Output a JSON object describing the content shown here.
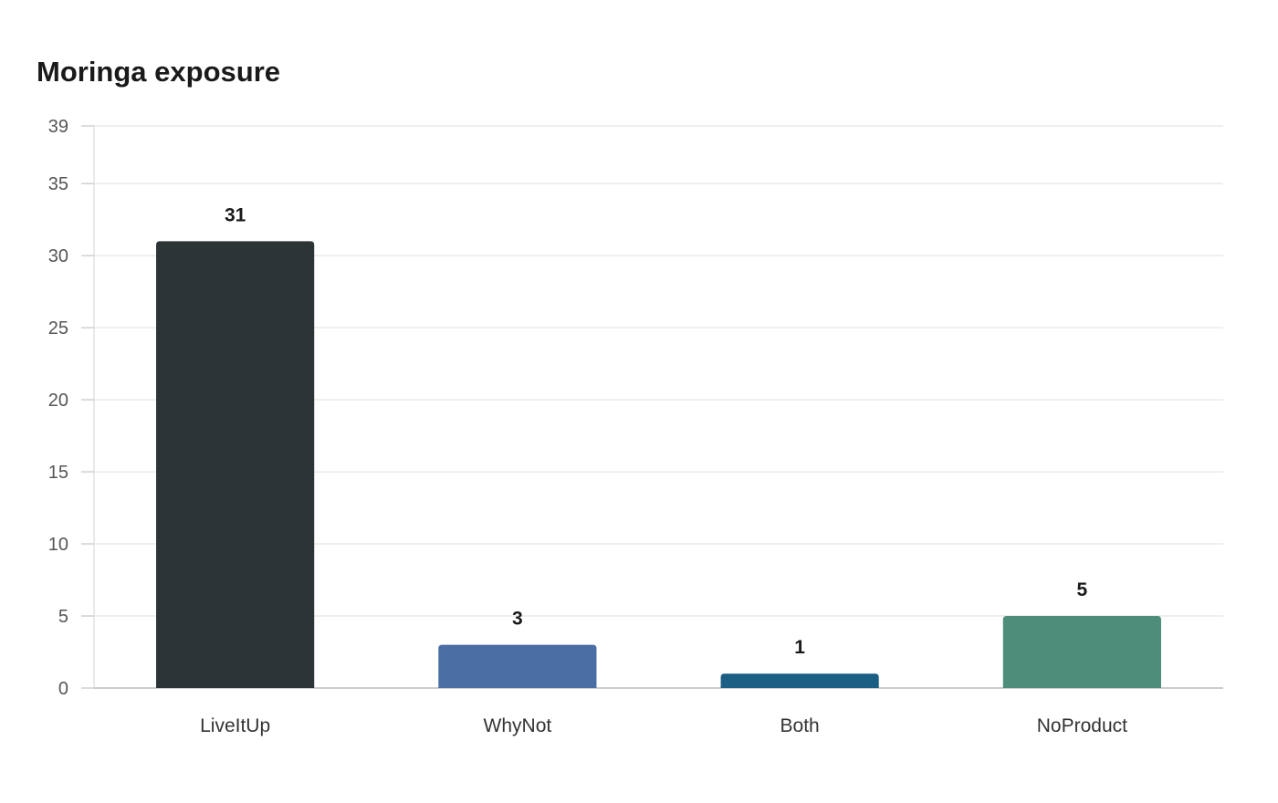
{
  "chart_data": {
    "type": "bar",
    "title": "Moringa exposure",
    "xlabel": "",
    "ylabel": "",
    "categories": [
      "LiveItUp",
      "WhyNot",
      "Both",
      "NoProduct"
    ],
    "values": [
      31,
      3,
      1,
      5
    ],
    "ylim": [
      0,
      39
    ],
    "yticks": [
      "0",
      "5",
      "10",
      "15",
      "20",
      "25",
      "30",
      "35",
      "39"
    ],
    "bar_colors": [
      "#2d3436",
      "#4a6da3",
      "#1b5f85",
      "#4d8d79"
    ],
    "grid": true,
    "legend": "none"
  }
}
